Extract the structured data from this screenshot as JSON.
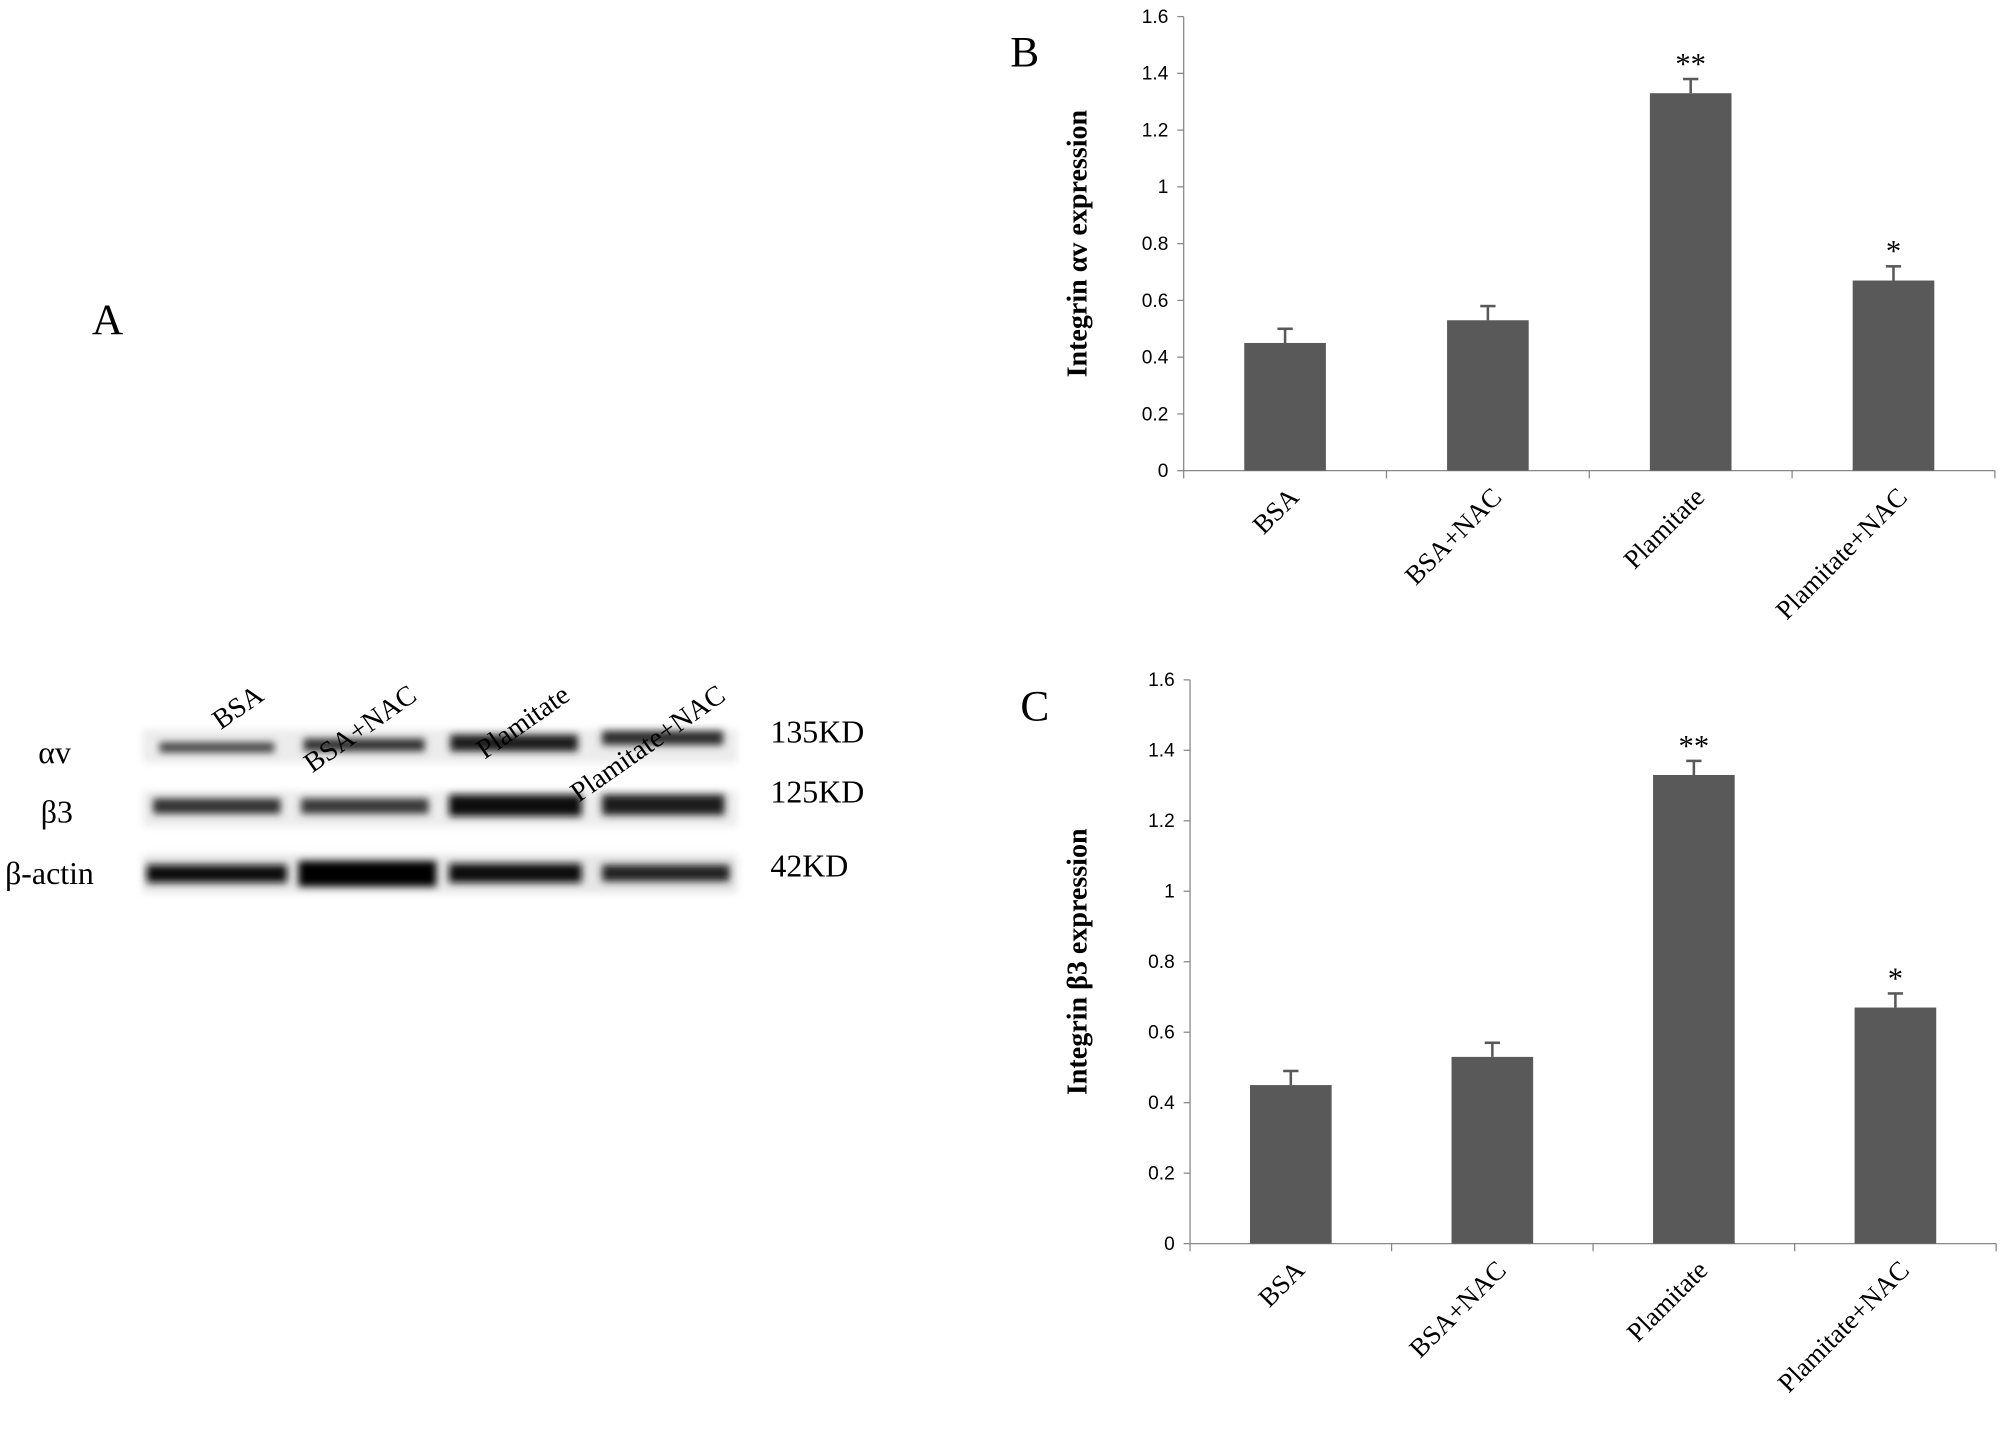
{
  "blot": {
    "panel": "A",
    "lanes": [
      "BSA",
      "BSA+NAC",
      "Plamitate",
      "Plamitate+NAC"
    ],
    "rows": [
      {
        "label": "αv",
        "size": "135KD"
      },
      {
        "label": "β3",
        "size": "125KD"
      },
      {
        "label": "β-actin",
        "size": "42KD"
      }
    ]
  },
  "chart_data": [
    {
      "type": "bar",
      "panel": "B",
      "y_label": "Integrin αv expression",
      "categories": [
        "BSA",
        "BSA+NAC",
        "Plamitate",
        "Plamitate+NAC"
      ],
      "values": [
        0.45,
        0.53,
        1.33,
        0.67
      ],
      "errors": [
        0.05,
        0.05,
        0.05,
        0.05
      ],
      "significance": [
        null,
        null,
        "**",
        "*"
      ],
      "color": "#595959",
      "ylim": [
        0,
        1.6
      ],
      "yticks": [
        0,
        0.2,
        0.4,
        0.6,
        0.8,
        1,
        1.2,
        1.4,
        1.6
      ],
      "grid": false
    },
    {
      "type": "bar",
      "panel": "C",
      "y_label": "Integrin β3 expression",
      "categories": [
        "BSA",
        "BSA+NAC",
        "Plamitate",
        "Plamitate+NAC"
      ],
      "values": [
        0.45,
        0.53,
        1.33,
        0.67
      ],
      "errors": [
        0.04,
        0.04,
        0.04,
        0.04
      ],
      "significance": [
        null,
        null,
        "**",
        "*"
      ],
      "color": "#595959",
      "ylim": [
        0,
        1.6
      ],
      "yticks": [
        0,
        0.2,
        0.4,
        0.6,
        0.8,
        1,
        1.2,
        1.4,
        1.6
      ],
      "grid": false
    }
  ]
}
